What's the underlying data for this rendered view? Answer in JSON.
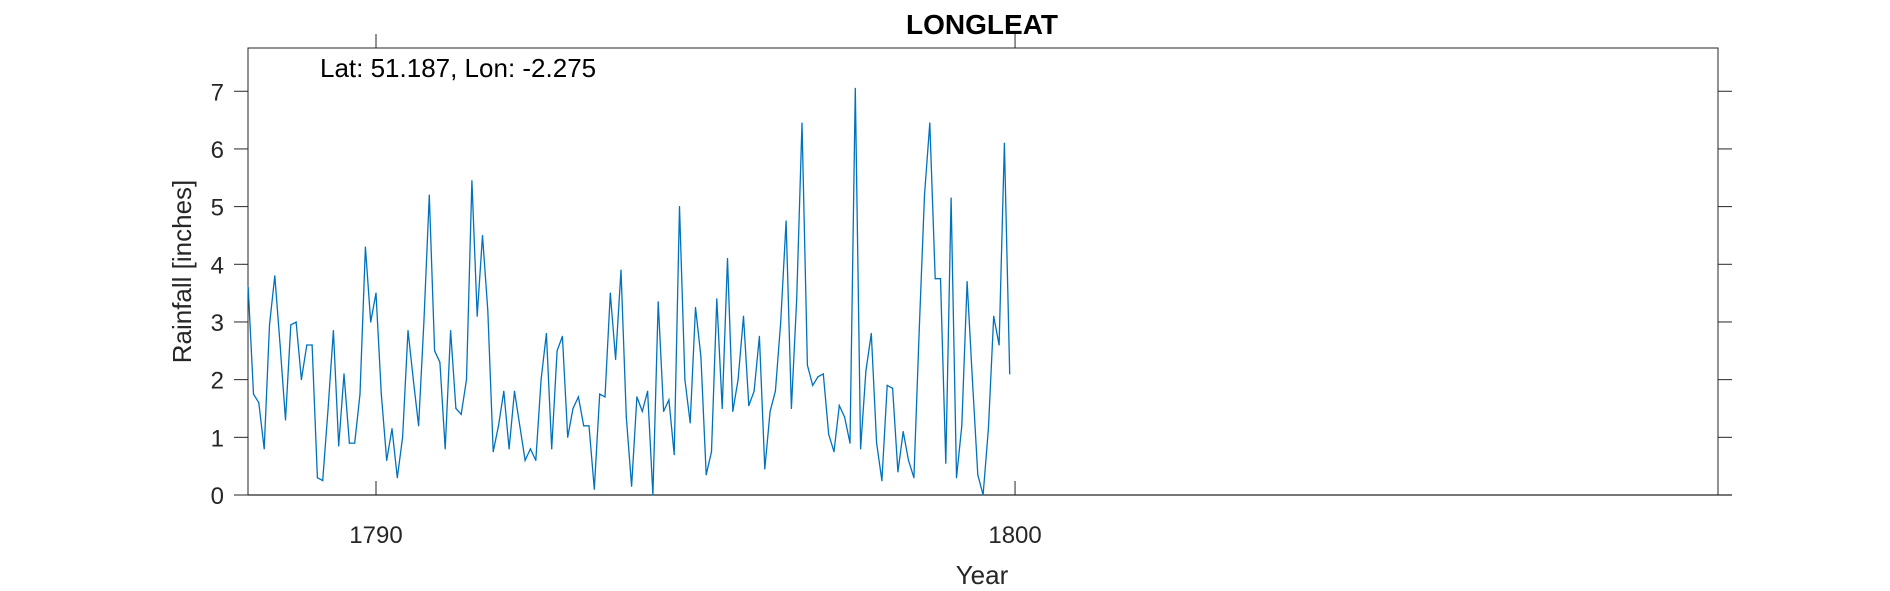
{
  "chart_data": {
    "type": "line",
    "title": "LONGLEAT",
    "xlabel": "Year",
    "ylabel": "Rainfall [inches]",
    "annotation": "Lat: 51.187, Lon: -2.275",
    "xlim": [
      1787.997,
      1811.0
    ],
    "ylim": [
      0,
      7.75
    ],
    "xticks": [
      1790,
      1800
    ],
    "yticks": [
      0,
      1,
      2,
      3,
      4,
      5,
      6,
      7
    ],
    "grid": false,
    "line_color": "#0072BD",
    "series": [
      {
        "x_start_year": 1788,
        "x_start_month": 1,
        "step_months": 1,
        "values": [
          3.6,
          1.75,
          1.6,
          0.8,
          2.95,
          3.8,
          2.6,
          1.3,
          2.95,
          3.0,
          2.0,
          2.6,
          2.6,
          0.3,
          0.25,
          1.5,
          2.85,
          0.85,
          2.1,
          0.9,
          0.9,
          1.75,
          4.3,
          3.0,
          3.5,
          1.75,
          0.6,
          1.15,
          0.3,
          1.0,
          2.85,
          2.0,
          1.2,
          3.0,
          5.2,
          2.5,
          2.3,
          0.8,
          2.85,
          1.5,
          1.4,
          2.0,
          5.45,
          3.1,
          4.5,
          3.2,
          0.75,
          1.2,
          1.8,
          0.8,
          1.8,
          1.2,
          0.6,
          0.8,
          0.6,
          2.0,
          2.8,
          0.8,
          2.5,
          2.75,
          1.0,
          1.5,
          1.7,
          1.2,
          1.2,
          0.1,
          1.75,
          1.7,
          3.5,
          2.35,
          3.9,
          1.35,
          0.15,
          1.7,
          1.45,
          1.8,
          0.0,
          3.35,
          1.45,
          1.65,
          0.7,
          5.0,
          2.0,
          1.25,
          3.25,
          2.4,
          0.35,
          0.75,
          3.4,
          1.5,
          4.1,
          1.45,
          2.0,
          3.1,
          1.55,
          1.8,
          2.75,
          0.45,
          1.45,
          1.8,
          3.0,
          4.75,
          1.5,
          3.4,
          6.45,
          2.25,
          1.9,
          2.05,
          2.1,
          1.05,
          0.75,
          1.55,
          1.35,
          0.9,
          7.05,
          0.8,
          2.15,
          2.8,
          0.9,
          0.25,
          1.9,
          1.85,
          0.4,
          1.1,
          0.6,
          0.3,
          2.85,
          5.2,
          6.45,
          3.75,
          3.75,
          0.55,
          5.15,
          0.3,
          1.2,
          3.7,
          2.0,
          0.35,
          0.0,
          1.15,
          3.1,
          2.6,
          6.1,
          2.1
        ]
      }
    ]
  }
}
